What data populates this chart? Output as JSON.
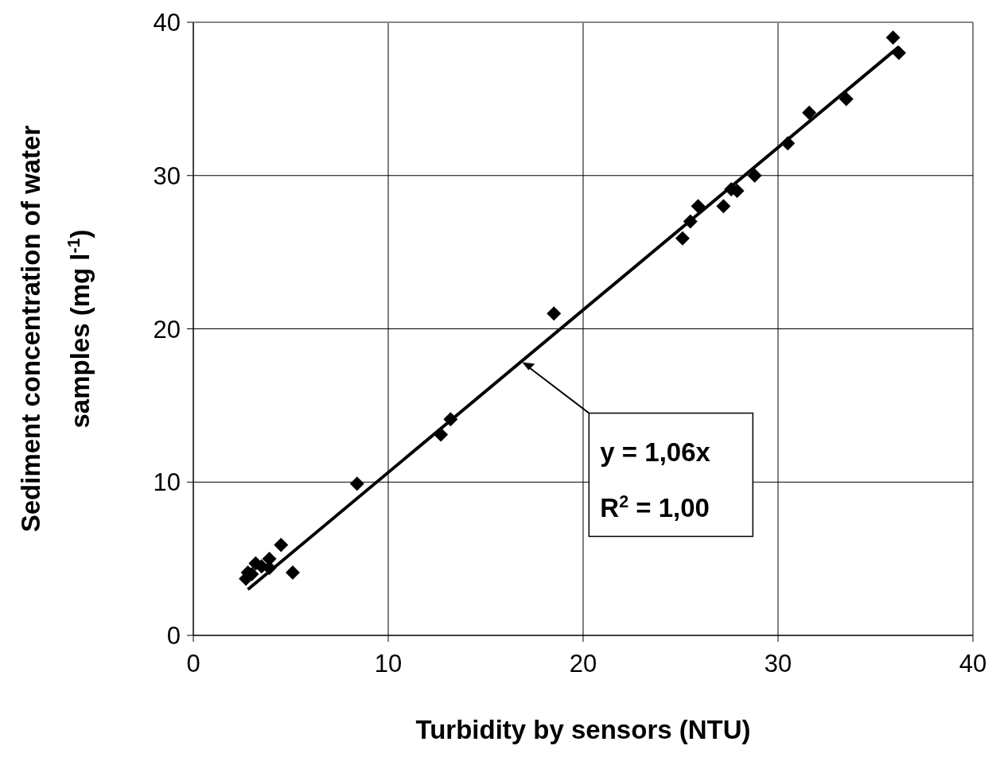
{
  "chart_data": {
    "type": "scatter",
    "xlabel": "Turbidity by sensors (NTU)",
    "ylabel": "Sediment concentration of water samples (mg l$^{-1}$)",
    "xlim": [
      0,
      40
    ],
    "ylim": [
      0,
      40
    ],
    "xticks": [
      0,
      10,
      20,
      30,
      40
    ],
    "yticks": [
      0,
      10,
      20,
      30,
      40
    ],
    "grid": true,
    "series": [
      {
        "marker": "diamond",
        "color": "#000000",
        "x": [
          35.9,
          36.2,
          33.5,
          31.6,
          30.5,
          28.8,
          27.9,
          27.6,
          27.2,
          25.9,
          25.5,
          25.1,
          18.5,
          13.2,
          12.7,
          8.4,
          4.5,
          5.1,
          3.9,
          3.2,
          2.8,
          2.7,
          3.0,
          3.5,
          3.9
        ],
        "values": [
          39.0,
          38.0,
          35.0,
          34.1,
          32.1,
          30.0,
          29.0,
          29.1,
          28.0,
          28.0,
          27.0,
          25.9,
          21.0,
          14.1,
          13.1,
          9.9,
          5.9,
          4.1,
          5.0,
          4.7,
          4.1,
          3.7,
          4.0,
          4.5,
          4.4
        ]
      },
      {
        "type": "line",
        "marker": "none",
        "color": "#000000",
        "x": [
          2.8,
          36.2
        ],
        "values": [
          3.0,
          38.4
        ]
      }
    ],
    "annotations": [
      "y = 1,06x",
      "R$^{2}$ = 1,00"
    ]
  }
}
